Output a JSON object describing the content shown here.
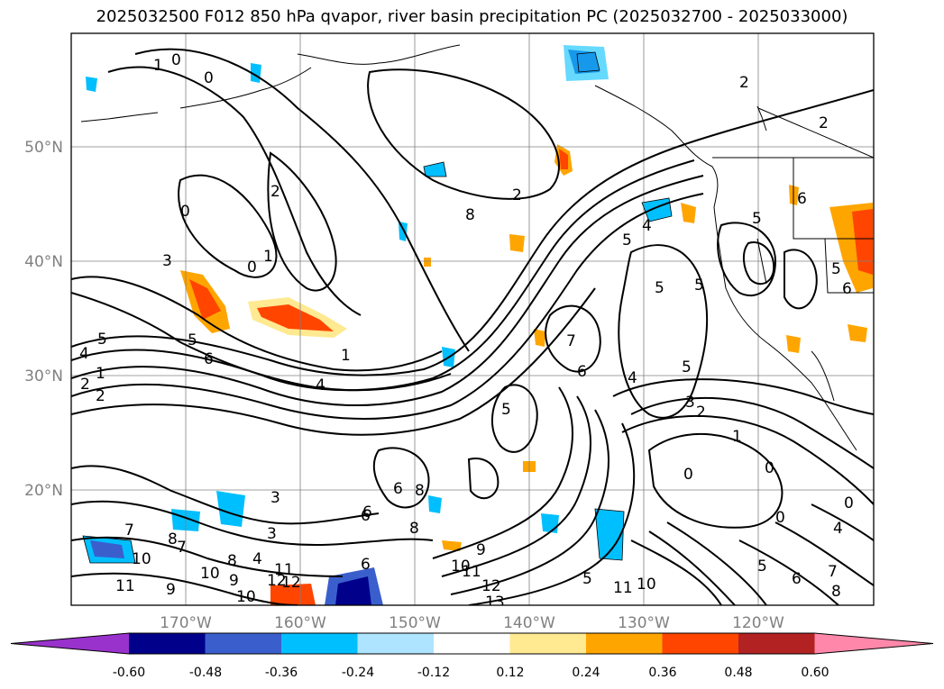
{
  "title": "2025032500 F012 850 hPa qvapor, river basin precipitation PC (2025032700 - 2025033000)",
  "lat_labels": [
    "50°N",
    "40°N",
    "30°N",
    "20°N"
  ],
  "lon_labels": [
    "170°W",
    "160°W",
    "150°W",
    "140°W",
    "130°W",
    "120°W"
  ],
  "contour_labels": [
    "1",
    "0",
    "0",
    "2",
    "0",
    "2",
    "0",
    "1",
    "1",
    "3",
    "8",
    "2",
    "5",
    "4",
    "5",
    "6",
    "2",
    "5",
    "4",
    "3",
    "3",
    "2",
    "0",
    "0",
    "4",
    "6",
    "5",
    "2",
    "1",
    "4",
    "2",
    "5",
    "6",
    "4",
    "6",
    "5",
    "5",
    "5",
    "6",
    "6",
    "5",
    "5",
    "6",
    "8",
    "7",
    "8",
    "9",
    "10",
    "11",
    "12",
    "13",
    "11",
    "10",
    "10",
    "7",
    "8",
    "9",
    "10",
    "11",
    "12",
    "6",
    "7",
    "8",
    "9",
    "10",
    "11",
    "12",
    "3",
    "4",
    "5",
    "7",
    "8",
    "0",
    "0",
    "1",
    "6"
  ],
  "colorbar": {
    "ticks": [
      "-0.60",
      "-0.48",
      "-0.36",
      "-0.24",
      "-0.12",
      "0.12",
      "0.24",
      "0.36",
      "0.48",
      "0.60"
    ],
    "colors": [
      "#9932cc",
      "#00008b",
      "#3a5fcd",
      "#00bfff",
      "#aee4ff",
      "#ffffff",
      "#ffe991",
      "#ffa500",
      "#ff4500",
      "#b22222",
      "#ff88aa"
    ]
  }
}
